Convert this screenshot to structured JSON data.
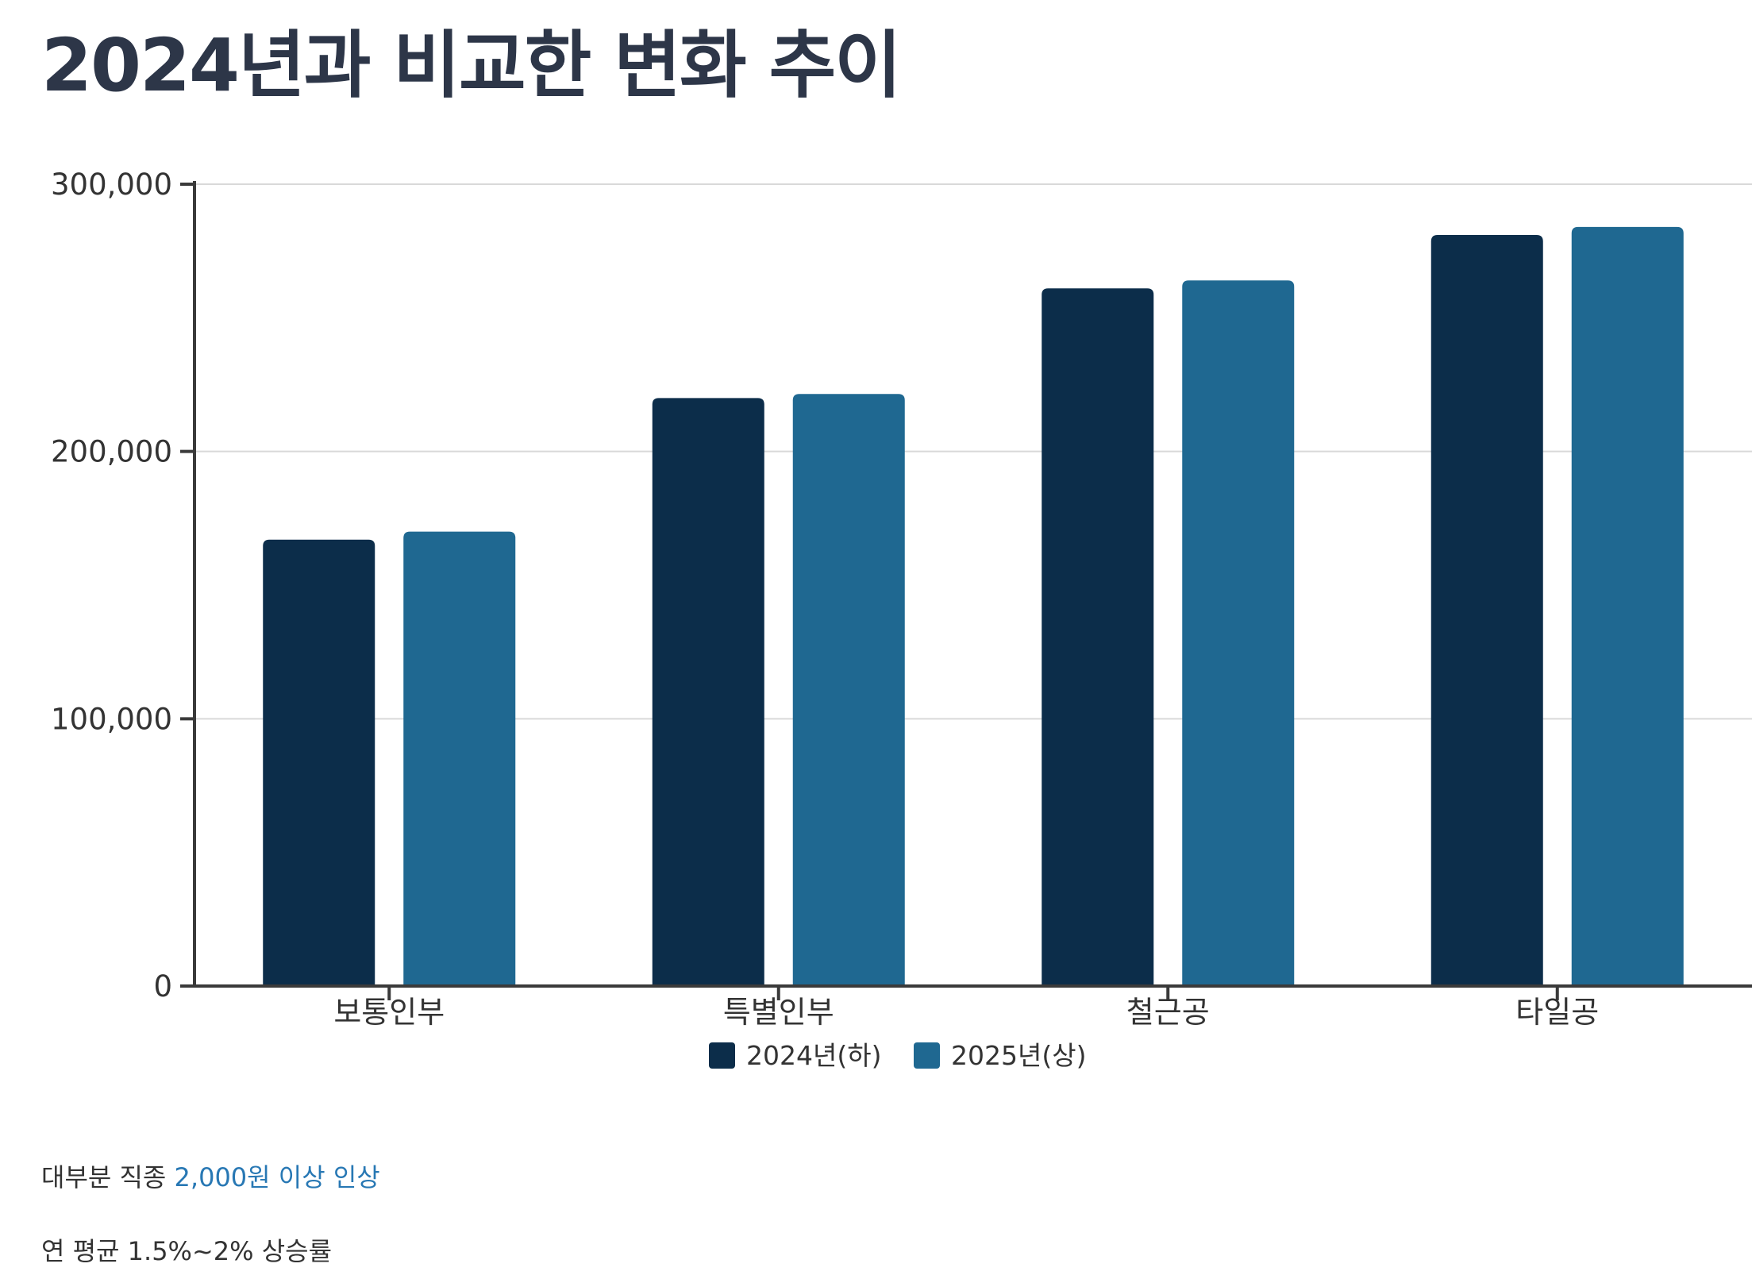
{
  "page": {
    "title": "2024년과 비교한 변화 추이"
  },
  "chart_data": {
    "type": "bar",
    "title": "",
    "xlabel": "",
    "ylabel": "",
    "categories": [
      "보통인부",
      "특별인부",
      "철근공",
      "타일공"
    ],
    "series": [
      {
        "name": "2024년(하)",
        "color": "#0c2d4a",
        "values": [
          167000,
          220000,
          261000,
          281000
        ]
      },
      {
        "name": "2025년(상)",
        "color": "#1f6891",
        "values": [
          170000,
          221500,
          264000,
          284000
        ]
      }
    ],
    "ylim": [
      0,
      300000
    ],
    "y_ticks": [
      "0",
      "100,000",
      "200,000",
      "300,000"
    ],
    "grid": true,
    "legend": "bottom-center"
  },
  "notes": {
    "line1_prefix": "대부분 직종 ",
    "line1_highlight": "2,000원 이상 인상",
    "line2": "연 평균 1.5%~2% 상승률"
  },
  "colors": {
    "title": "#2d3648",
    "highlight": "#2878b4",
    "axis": "#3a3a3a",
    "grid": "#d9d9d9"
  }
}
